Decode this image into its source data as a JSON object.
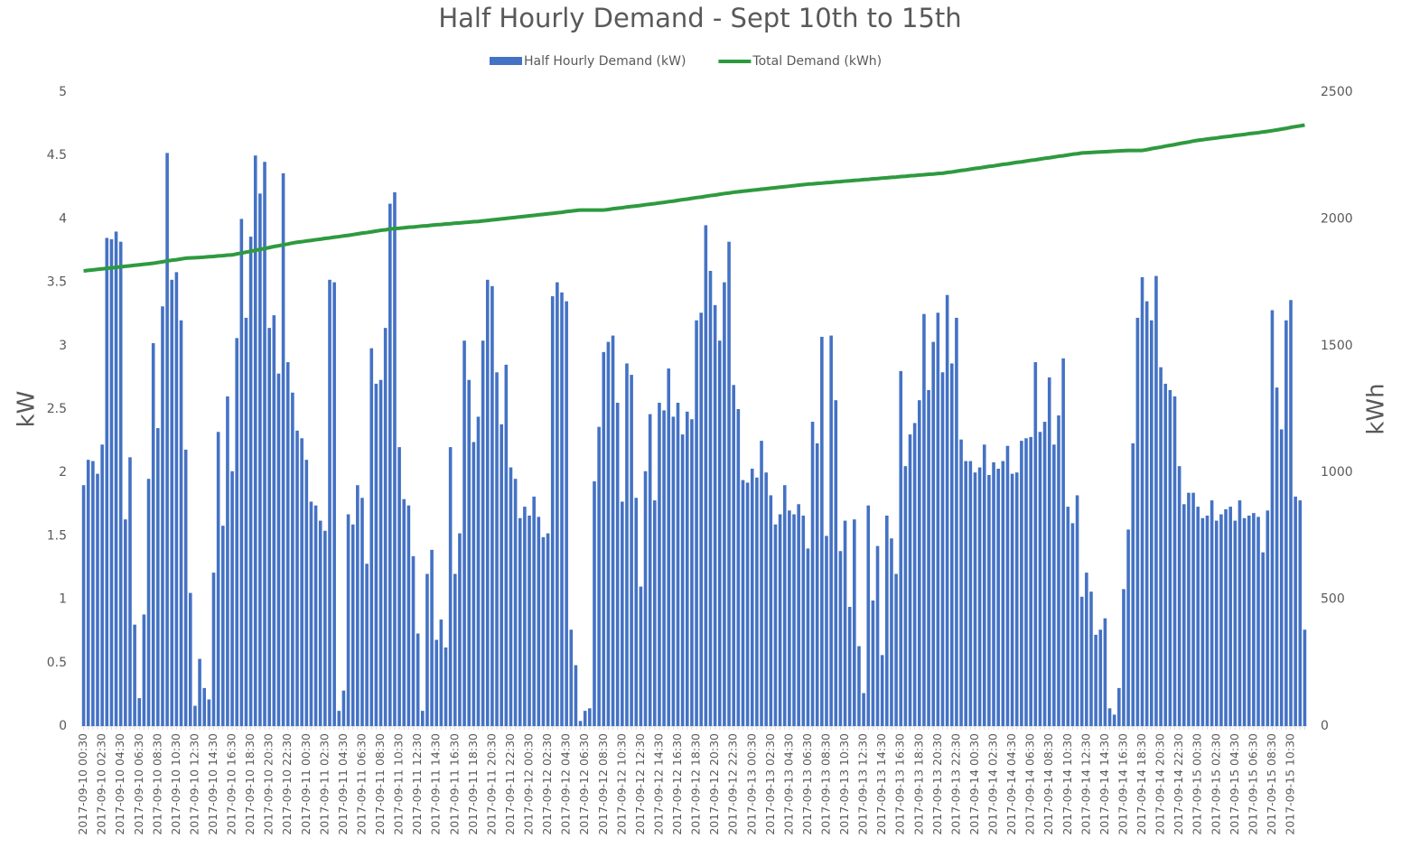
{
  "chart_data": {
    "type": "bar",
    "title": "Half Hourly Demand - Sept 10th to 15th",
    "y_label": "kW",
    "y2_label": "kWh",
    "ylim": [
      0,
      5
    ],
    "yticks": [
      0,
      0.5,
      1,
      1.5,
      2,
      2.5,
      3,
      3.5,
      4,
      4.5,
      5
    ],
    "y2lim": [
      0,
      2500
    ],
    "y2ticks": [
      0,
      500,
      1000,
      1500,
      2000,
      2500
    ],
    "legend": "top",
    "categories": [
      "2017-09-10 00:30",
      null,
      null,
      null,
      "2017-09-10 02:30",
      null,
      null,
      null,
      "2017-09-10 04:30",
      null,
      null,
      null,
      "2017-09-10 06:30",
      null,
      null,
      null,
      "2017-09-10 08:30",
      null,
      null,
      null,
      "2017-09-10 10:30",
      null,
      null,
      null,
      "2017-09-10 12:30",
      null,
      null,
      null,
      "2017-09-10 14:30",
      null,
      null,
      null,
      "2017-09-10 16:30",
      null,
      null,
      null,
      "2017-09-10 18:30",
      null,
      null,
      null,
      "2017-09-10 20:30",
      null,
      null,
      null,
      "2017-09-10 22:30",
      null,
      null,
      null,
      "2017-09-11 00:30",
      null,
      null,
      null,
      "2017-09-11 02:30",
      null,
      null,
      null,
      "2017-09-11 04:30",
      null,
      null,
      null,
      "2017-09-11 06:30",
      null,
      null,
      null,
      "2017-09-11 08:30",
      null,
      null,
      null,
      "2017-09-11 10:30",
      null,
      null,
      null,
      "2017-09-11 12:30",
      null,
      null,
      null,
      "2017-09-11 14:30",
      null,
      null,
      null,
      "2017-09-11 16:30",
      null,
      null,
      null,
      "2017-09-11 18:30",
      null,
      null,
      null,
      "2017-09-11 20:30",
      null,
      null,
      null,
      "2017-09-11 22:30",
      null,
      null,
      null,
      "2017-09-12 00:30",
      null,
      null,
      null,
      "2017-09-12 02:30",
      null,
      null,
      null,
      "2017-09-12 04:30",
      null,
      null,
      null,
      "2017-09-12 06:30",
      null,
      null,
      null,
      "2017-09-12 08:30",
      null,
      null,
      null,
      "2017-09-12 10:30",
      null,
      null,
      null,
      "2017-09-12 12:30",
      null,
      null,
      null,
      "2017-09-12 14:30",
      null,
      null,
      null,
      "2017-09-12 16:30",
      null,
      null,
      null,
      "2017-09-12 18:30",
      null,
      null,
      null,
      "2017-09-12 20:30",
      null,
      null,
      null,
      "2017-09-12 22:30",
      null,
      null,
      null,
      "2017-09-13 00:30",
      null,
      null,
      null,
      "2017-09-13 02:30",
      null,
      null,
      null,
      "2017-09-13 04:30",
      null,
      null,
      null,
      "2017-09-13 06:30",
      null,
      null,
      null,
      "2017-09-13 08:30",
      null,
      null,
      null,
      "2017-09-13 10:30",
      null,
      null,
      null,
      "2017-09-13 12:30",
      null,
      null,
      null,
      "2017-09-13 14:30",
      null,
      null,
      null,
      "2017-09-13 16:30",
      null,
      null,
      null,
      "2017-09-13 18:30",
      null,
      null,
      null,
      "2017-09-13 20:30",
      null,
      null,
      null,
      "2017-09-13 22:30",
      null,
      null,
      null,
      "2017-09-14 00:30",
      null,
      null,
      null,
      "2017-09-14 02:30",
      null,
      null,
      null,
      "2017-09-14 04:30",
      null,
      null,
      null,
      "2017-09-14 06:30",
      null,
      null,
      null,
      "2017-09-14 08:30",
      null,
      null,
      null,
      "2017-09-14 10:30",
      null,
      null,
      null,
      "2017-09-14 12:30",
      null,
      null,
      null,
      "2017-09-14 14:30",
      null,
      null,
      null,
      "2017-09-14 16:30",
      null,
      null,
      null,
      "2017-09-14 18:30",
      null,
      null,
      null,
      "2017-09-14 20:30",
      null,
      null,
      null,
      "2017-09-14 22:30",
      null,
      null,
      null,
      "2017-09-15 00:30",
      null,
      null,
      null,
      "2017-09-15 02:30",
      null,
      null,
      null,
      "2017-09-15 04:30",
      null,
      null,
      null,
      "2017-09-15 06:30",
      null,
      null,
      null,
      "2017-09-15 08:30",
      null,
      null,
      null,
      "2017-09-15 10:30",
      null,
      null,
      null
    ],
    "series": [
      {
        "name": "Half Hourly Demand (kW)",
        "type": "bar",
        "color": "#4472c4",
        "values": [
          1.9,
          2.1,
          2.09,
          1.99,
          2.22,
          3.85,
          3.84,
          3.9,
          3.82,
          1.63,
          2.12,
          0.8,
          0.22,
          0.88,
          1.95,
          3.02,
          2.35,
          3.31,
          4.52,
          3.52,
          3.58,
          3.2,
          2.18,
          1.05,
          0.16,
          0.53,
          0.3,
          0.21,
          1.21,
          2.32,
          1.58,
          2.6,
          2.01,
          3.06,
          4.0,
          3.22,
          3.86,
          4.5,
          4.2,
          4.45,
          3.14,
          3.24,
          2.78,
          4.36,
          2.87,
          2.63,
          2.33,
          2.27,
          2.1,
          1.77,
          1.74,
          1.62,
          1.54,
          3.52,
          3.5,
          0.12,
          0.28,
          1.67,
          1.59,
          1.9,
          1.8,
          1.28,
          2.98,
          2.7,
          2.73,
          3.14,
          4.12,
          4.21,
          2.2,
          1.79,
          1.74,
          1.34,
          0.73,
          0.12,
          1.2,
          1.39,
          0.68,
          0.84,
          0.62,
          2.2,
          1.2,
          1.52,
          3.04,
          2.73,
          2.24,
          2.44,
          3.04,
          3.52,
          3.47,
          2.79,
          2.38,
          2.85,
          2.04,
          1.95,
          1.64,
          1.73,
          1.66,
          1.81,
          1.65,
          1.49,
          1.52,
          3.39,
          3.5,
          3.42,
          3.35,
          0.76,
          0.48,
          0.04,
          0.12,
          0.14,
          1.93,
          2.36,
          2.95,
          3.03,
          3.08,
          2.55,
          1.77,
          2.86,
          2.77,
          1.8,
          1.1,
          2.01,
          2.46,
          1.78,
          2.55,
          2.49,
          2.82,
          2.44,
          2.55,
          2.3,
          2.48,
          2.42,
          3.2,
          3.26,
          3.95,
          3.59,
          3.32,
          3.04,
          3.5,
          3.82,
          2.69,
          2.5,
          1.94,
          1.92,
          2.03,
          1.96,
          2.25,
          2.0,
          1.82,
          1.59,
          1.67,
          1.9,
          1.7,
          1.67,
          1.75,
          1.66,
          1.4,
          2.4,
          2.23,
          3.07,
          1.5,
          3.08,
          2.57,
          1.38,
          1.62,
          0.94,
          1.63,
          0.63,
          0.26,
          1.74,
          0.99,
          1.42,
          0.56,
          1.66,
          1.48,
          1.2,
          2.8,
          2.05,
          2.3,
          2.39,
          2.57,
          3.25,
          2.65,
          3.03,
          3.26,
          2.79,
          3.4,
          2.86,
          3.22,
          2.26,
          2.09,
          2.09,
          2.0,
          2.04,
          2.22,
          1.98,
          2.08,
          2.03,
          2.09,
          2.21,
          1.99,
          2.0,
          2.25,
          2.27,
          2.28,
          2.87,
          2.32,
          2.4,
          2.75,
          2.22,
          2.45,
          2.9,
          1.73,
          1.6,
          1.82,
          1.02,
          1.21,
          1.06,
          0.72,
          0.76,
          0.85,
          0.14,
          0.09,
          0.3,
          1.08,
          1.55,
          2.23,
          3.22,
          3.54,
          3.35,
          3.2,
          3.55,
          2.83,
          2.7,
          2.65,
          2.6,
          2.05,
          1.75,
          1.84,
          1.84,
          1.73,
          1.64,
          1.66,
          1.78,
          1.62,
          1.67,
          1.71,
          1.73,
          1.62,
          1.78,
          1.64,
          1.66,
          1.68,
          1.65,
          1.37,
          1.7,
          3.28,
          2.67,
          2.34,
          3.2,
          3.36,
          1.81,
          1.78,
          0.76
        ]
      },
      {
        "name": "Total Demand (kWh)",
        "type": "line",
        "axis": "y2",
        "color": "#2e9a3f",
        "values": [
          1795,
          1797,
          1799,
          1801,
          1803,
          1805,
          1807,
          1809,
          1811,
          1813,
          1815,
          1817,
          1819,
          1821,
          1823,
          1825,
          1828,
          1831,
          1834,
          1837,
          1839,
          1842,
          1845,
          1846,
          1847,
          1848,
          1849,
          1851,
          1852,
          1854,
          1855,
          1857,
          1858,
          1862,
          1865,
          1869,
          1872,
          1876,
          1880,
          1883,
          1887,
          1891,
          1894,
          1898,
          1901,
          1905,
          1908,
          1910,
          1913,
          1915,
          1918,
          1920,
          1923,
          1925,
          1928,
          1930,
          1933,
          1935,
          1938,
          1941,
          1944,
          1946,
          1949,
          1952,
          1955,
          1957,
          1960,
          1962,
          1963,
          1965,
          1967,
          1968,
          1970,
          1972,
          1973,
          1975,
          1977,
          1978,
          1980,
          1981,
          1983,
          1984,
          1986,
          1987,
          1989,
          1990,
          1992,
          1994,
          1996,
          1998,
          2000,
          2002,
          2004,
          2006,
          2008,
          2010,
          2012,
          2014,
          2016,
          2018,
          2020,
          2022,
          2024,
          2026,
          2029,
          2031,
          2033,
          2035,
          2035,
          2035,
          2035,
          2035,
          2035,
          2037,
          2040,
          2042,
          2044,
          2047,
          2049,
          2051,
          2053,
          2056,
          2058,
          2060,
          2063,
          2065,
          2068,
          2070,
          2073,
          2076,
          2078,
          2081,
          2084,
          2086,
          2089,
          2092,
          2094,
          2097,
          2100,
          2102,
          2105,
          2107,
          2109,
          2111,
          2113,
          2115,
          2117,
          2119,
          2121,
          2123,
          2125,
          2127,
          2129,
          2131,
          2133,
          2135,
          2137,
          2138,
          2140,
          2141,
          2143,
          2144,
          2146,
          2147,
          2149,
          2150,
          2152,
          2153,
          2155,
          2156,
          2158,
          2159,
          2161,
          2162,
          2164,
          2165,
          2167,
          2168,
          2170,
          2171,
          2173,
          2174,
          2176,
          2177,
          2179,
          2180,
          2183,
          2185,
          2188,
          2191,
          2193,
          2196,
          2199,
          2201,
          2204,
          2207,
          2209,
          2212,
          2215,
          2217,
          2220,
          2223,
          2225,
          2228,
          2231,
          2233,
          2236,
          2239,
          2241,
          2244,
          2247,
          2249,
          2252,
          2255,
          2257,
          2260,
          2261,
          2262,
          2263,
          2264,
          2265,
          2266,
          2267,
          2268,
          2269,
          2270,
          2270,
          2270,
          2270,
          2273,
          2277,
          2280,
          2283,
          2287,
          2290,
          2293,
          2297,
          2300,
          2303,
          2307,
          2310,
          2312,
          2315,
          2317,
          2319,
          2322,
          2324,
          2326,
          2329,
          2331,
          2333,
          2336,
          2338,
          2340,
          2343,
          2345,
          2348,
          2351,
          2354,
          2357,
          2361,
          2364,
          2367,
          2370
        ]
      }
    ]
  }
}
